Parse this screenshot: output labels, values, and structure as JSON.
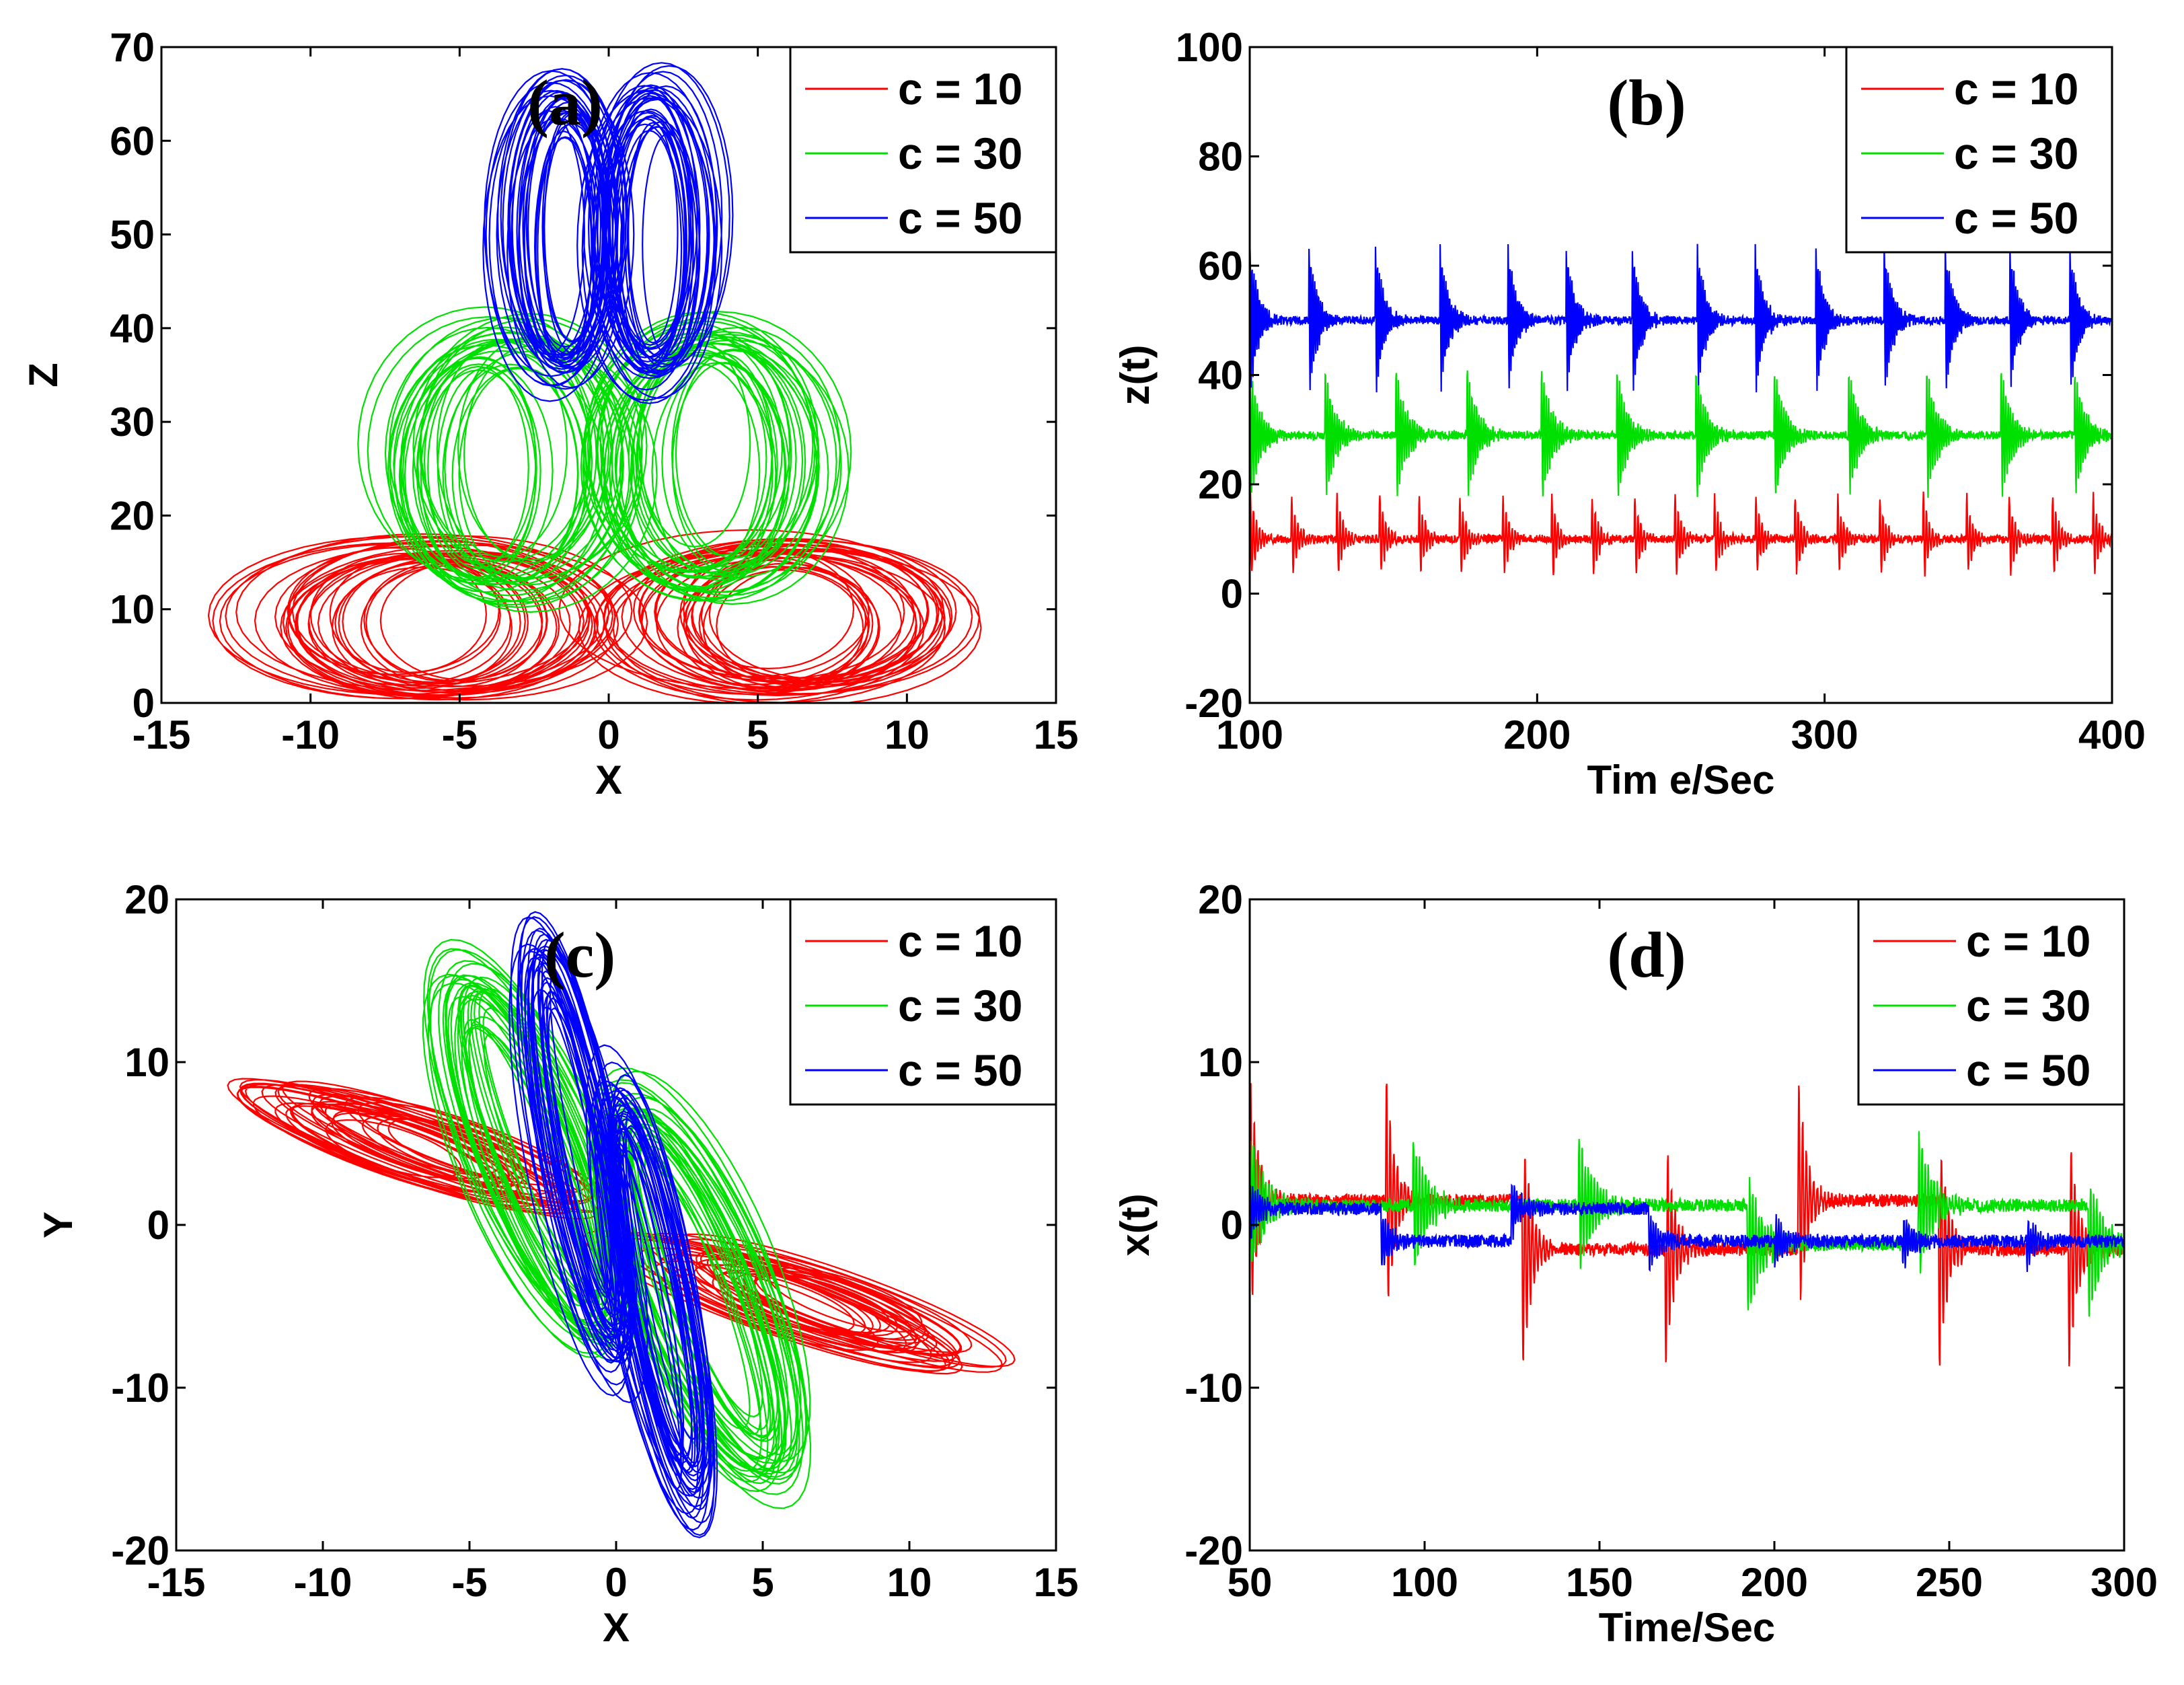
{
  "colors": {
    "c10": "#ff0000",
    "c30": "#00e000",
    "c50": "#0000ff",
    "axis": "#000000",
    "background": "#ffffff"
  },
  "chart_data": [
    {
      "id": "a",
      "type": "line",
      "panel_label": "(a)",
      "xlabel": "X",
      "ylabel": "Z",
      "xlim": [
        -15,
        15
      ],
      "ylim": [
        0,
        70
      ],
      "xticks": [
        -15,
        -10,
        -5,
        0,
        5,
        10,
        15
      ],
      "yticks": [
        0,
        10,
        20,
        30,
        40,
        50,
        60,
        70
      ],
      "xtick_labels": [
        "-15",
        "-10",
        "-5",
        "0",
        "5",
        "10",
        "15"
      ],
      "ytick_labels": [
        "0",
        "10",
        "20",
        "30",
        "40",
        "50",
        "60",
        "70"
      ],
      "legend": [
        "c = 10",
        "c = 30",
        "c = 50"
      ],
      "legend_position": "top-right",
      "series": [
        {
          "name": "c = 10",
          "color": "#ff0000",
          "kind": "phase",
          "lobes": [
            {
              "cx": -6.0,
              "cy": 9.0,
              "ax": 6.5,
              "ay": 8.5
            },
            {
              "cx": 6.0,
              "cy": 9.0,
              "ax": 6.5,
              "ay": 8.5
            }
          ]
        },
        {
          "name": "c = 30",
          "color": "#00e000",
          "kind": "phase",
          "lobes": [
            {
              "cx": -3.5,
              "cy": 26.0,
              "ax": 4.5,
              "ay": 15.0
            },
            {
              "cx": 3.5,
              "cy": 26.0,
              "ax": 4.5,
              "ay": 15.0
            }
          ]
        },
        {
          "name": "c = 50",
          "color": "#0000ff",
          "kind": "phase",
          "lobes": [
            {
              "cx": -1.6,
              "cy": 50.0,
              "ax": 2.3,
              "ay": 16.5
            },
            {
              "cx": 1.6,
              "cy": 50.0,
              "ax": 2.3,
              "ay": 16.5
            }
          ]
        }
      ]
    },
    {
      "id": "b",
      "type": "line",
      "panel_label": "(b)",
      "xlabel": "Tim e/Sec",
      "ylabel": "z(t)",
      "xlim": [
        100,
        400
      ],
      "ylim": [
        -20,
        100
      ],
      "xticks": [
        100,
        200,
        300,
        400
      ],
      "yticks": [
        -20,
        0,
        20,
        40,
        60,
        80,
        100
      ],
      "xtick_labels": [
        "100",
        "200",
        "300",
        "400"
      ],
      "ytick_labels": [
        "-20",
        "0",
        "20",
        "40",
        "60",
        "80",
        "100"
      ],
      "legend": [
        "c = 10",
        "c = 30",
        "c = 50"
      ],
      "legend_position": "top-right",
      "series": [
        {
          "name": "c = 10",
          "color": "#ff0000",
          "kind": "time",
          "base": 10,
          "amp": 9,
          "period": 22,
          "osc": 1.0,
          "decay": 0.12,
          "seed": 3
        },
        {
          "name": "c = 30",
          "color": "#00e000",
          "kind": "time",
          "base": 29,
          "amp": 13,
          "period": 40,
          "osc": 1.3,
          "decay": 0.07,
          "seed": 7
        },
        {
          "name": "c = 50",
          "color": "#0000ff",
          "kind": "time",
          "base": 50,
          "amp": 15,
          "period": 33,
          "osc": 1.6,
          "decay": 0.09,
          "seed": 11
        }
      ]
    },
    {
      "id": "c",
      "type": "line",
      "panel_label": "(c)",
      "xlabel": "X",
      "ylabel": "Y",
      "xlim": [
        -15,
        15
      ],
      "ylim": [
        -20,
        20
      ],
      "xticks": [
        -15,
        -10,
        -5,
        0,
        5,
        10,
        15
      ],
      "yticks": [
        -20,
        -10,
        0,
        10,
        20
      ],
      "xtick_labels": [
        "-15",
        "-10",
        "-5",
        "0",
        "5",
        "10",
        "15"
      ],
      "ytick_labels": [
        "-20",
        "-10",
        "0",
        "10",
        "20"
      ],
      "legend": [
        "c = 10",
        "c = 30",
        "c = 50"
      ],
      "legend_position": "top-right",
      "series": [
        {
          "name": "c = 10",
          "color": "#ff0000",
          "kind": "phase",
          "lobes": [
            {
              "cx": -6.5,
              "cy": 4.8,
              "ax": 7.5,
              "ay": 1.6,
              "rot": -34
            },
            {
              "cx": 6.5,
              "cy": -4.8,
              "ax": 7.5,
              "ay": 1.6,
              "rot": -34
            }
          ]
        },
        {
          "name": "c = 30",
          "color": "#00e000",
          "kind": "phase",
          "lobes": [
            {
              "cx": -2.8,
              "cy": 4.0,
              "ax": 2.5,
              "ay": 12.5,
              "rot": 12
            },
            {
              "cx": 2.8,
              "cy": -4.0,
              "ax": 2.5,
              "ay": 12.5,
              "rot": 12
            }
          ]
        },
        {
          "name": "c = 50",
          "color": "#0000ff",
          "kind": "phase",
          "lobes": [
            {
              "cx": -1.3,
              "cy": 4.5,
              "ax": 1.5,
              "ay": 14.0,
              "rot": 6
            },
            {
              "cx": 1.3,
              "cy": -4.5,
              "ax": 1.5,
              "ay": 14.0,
              "rot": 6
            }
          ]
        }
      ]
    },
    {
      "id": "d",
      "type": "line",
      "panel_label": "(d)",
      "xlabel": "Time/Sec",
      "ylabel": "x(t)",
      "xlim": [
        50,
        300
      ],
      "ylim": [
        -20,
        20
      ],
      "xticks": [
        50,
        100,
        150,
        200,
        250,
        300
      ],
      "yticks": [
        -20,
        -10,
        0,
        10,
        20
      ],
      "xtick_labels": [
        "50",
        "100",
        "150",
        "200",
        "250",
        "300"
      ],
      "ytick_labels": [
        "-20",
        "-10",
        "0",
        "10",
        "20"
      ],
      "legend": [
        "c = 10",
        "c = 30",
        "c = 50"
      ],
      "legend_position": "top-right",
      "series": [
        {
          "name": "c = 10",
          "color": "#ff0000",
          "kind": "switch",
          "level": 1.5,
          "amp": 9,
          "period": 60,
          "osc": 1.0,
          "decay": 0.1,
          "seed": 5
        },
        {
          "name": "c = 30",
          "color": "#00e000",
          "kind": "switch",
          "level": 1.2,
          "amp": 5,
          "period": 75,
          "osc": 1.2,
          "decay": 0.06,
          "seed": 9
        },
        {
          "name": "c = 50",
          "color": "#0000ff",
          "kind": "switch",
          "level": 1.0,
          "amp": 2,
          "period": 55,
          "osc": 1.5,
          "decay": 0.08,
          "seed": 13
        }
      ]
    }
  ]
}
